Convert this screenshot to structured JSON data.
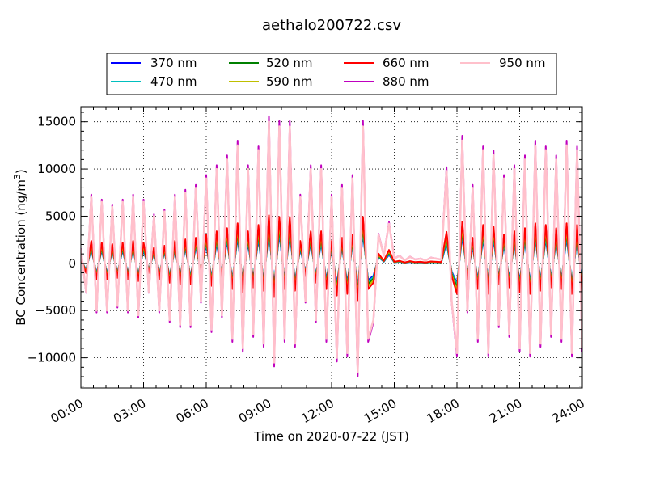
{
  "chart_data": {
    "type": "line",
    "title": "aethalo200722.csv",
    "xlabel": "Time on 2020-07-22 (JST)",
    "ylabel": "BC Concentration (ng/m",
    "ylabel_sup": "3",
    "ylabel_end": ")",
    "xlim_hours": [
      0,
      24
    ],
    "ylim": [
      -13200,
      16600
    ],
    "x_ticks": [
      {
        "h": 0,
        "label": "00:00"
      },
      {
        "h": 3,
        "label": "03:00"
      },
      {
        "h": 6,
        "label": "06:00"
      },
      {
        "h": 9,
        "label": "09:00"
      },
      {
        "h": 12,
        "label": "12:00"
      },
      {
        "h": 15,
        "label": "15:00"
      },
      {
        "h": 18,
        "label": "18:00"
      },
      {
        "h": 21,
        "label": "21:00"
      },
      {
        "h": 24,
        "label": "24:00"
      }
    ],
    "y_ticks": [
      {
        "v": -10000,
        "label": "−10000"
      },
      {
        "v": -5000,
        "label": "−5000"
      },
      {
        "v": 0,
        "label": "0"
      },
      {
        "v": 5000,
        "label": "5000"
      },
      {
        "v": 10000,
        "label": "10000"
      },
      {
        "v": 15000,
        "label": "15000"
      }
    ],
    "grid": true,
    "legend_placement": "top-center, above plot",
    "sample_interval_minutes": 15,
    "base_values": [
      1500,
      -3000,
      7000,
      -5000,
      6500,
      -5000,
      6000,
      -4500,
      6500,
      -5000,
      7000,
      -5500,
      6500,
      -3000,
      5000,
      -5000,
      5500,
      -6000,
      7000,
      -6500,
      7500,
      -6500,
      8000,
      -4000,
      9000,
      -7000,
      10000,
      -5500,
      11000,
      -8000,
      12500,
      -9000,
      10000,
      -7500,
      12000,
      -8500,
      15000,
      -10500,
      14500,
      -8000,
      14500,
      -8500,
      7000,
      -4000,
      10000,
      -6000,
      10000,
      -8000,
      7000,
      -10000,
      8000,
      -9500,
      9000,
      -11500,
      14500,
      -8000,
      -6000,
      3000,
      800,
      4200,
      500,
      800,
      300,
      700,
      400,
      500,
      300,
      600,
      500,
      400,
      9800,
      -4000,
      -9500,
      13000,
      -5000,
      8000,
      -8000,
      12000,
      -9500,
      11500,
      -6500,
      9000,
      -7500,
      10000,
      -9000,
      11000,
      -9500,
      12500,
      -8500,
      12000,
      -7500,
      11000,
      -8000,
      12500,
      -9500,
      12000,
      -9000
    ],
    "series": [
      {
        "name": "370 nm",
        "color": "#0000ff",
        "scale": 0.22
      },
      {
        "name": "470 nm",
        "color": "#00bfbf",
        "scale": 0.24
      },
      {
        "name": "520 nm",
        "color": "#008000",
        "scale": 0.27
      },
      {
        "name": "590 nm",
        "color": "#bfbf00",
        "scale": 0.3
      },
      {
        "name": "660 nm",
        "color": "#ff0000",
        "scale": 0.34
      },
      {
        "name": "880 nm",
        "color": "#bf00bf",
        "scale": 1.04
      },
      {
        "name": "950 nm",
        "color": "#ffc0cb",
        "scale": 1.0
      }
    ]
  }
}
